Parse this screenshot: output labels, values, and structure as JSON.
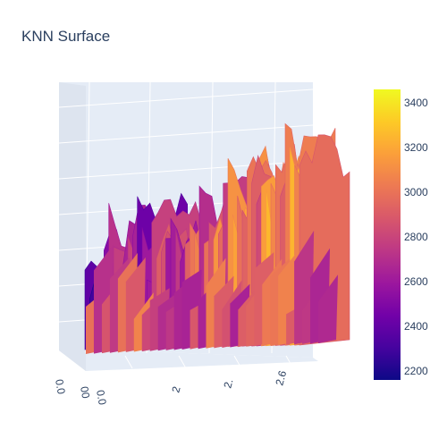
{
  "chart_data": {
    "type": "surface",
    "title": "KNN Surface",
    "colorscale": [
      "#0d0887",
      "#46039f",
      "#7201a8",
      "#9c179e",
      "#bd3786",
      "#d8576b",
      "#ed7953",
      "#fb9f3a",
      "#fdca26",
      "#f0f921"
    ],
    "colorbar": {
      "range": [
        2160,
        3460
      ],
      "ticks": [
        2200,
        2400,
        2600,
        2800,
        3000,
        3200,
        3400
      ],
      "tick_labels": [
        "2200",
        "2400",
        "2600",
        "2800",
        "3000",
        "3200",
        "3400"
      ]
    },
    "x_ticks_visible": [
      "2",
      "2.",
      "2.6"
    ],
    "y_ticks_visible": [
      "0.0",
      "00",
      "0.0"
    ],
    "scene_background": "#e5ecf6",
    "grid": true
  }
}
